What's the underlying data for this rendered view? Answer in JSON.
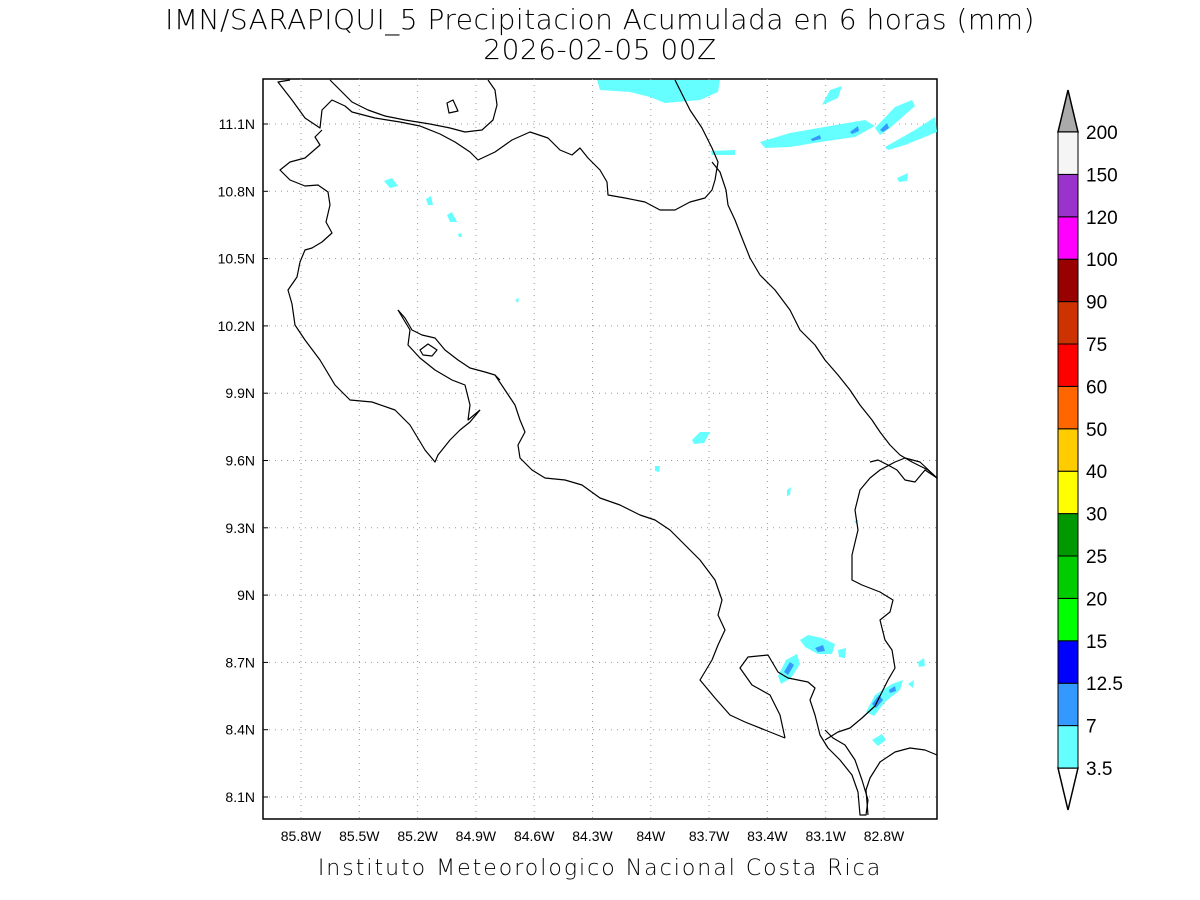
{
  "title": {
    "line1": "IMN/SARAPIQUI_5 Precipitacion Acumulada en 6 horas (mm)",
    "line2": "2026-02-05 00Z"
  },
  "footer": "Instituto Meteorologico Nacional Costa Rica",
  "map": {
    "lat_ticks": [
      "11.1N",
      "10.8N",
      "10.5N",
      "10.2N",
      "9.9N",
      "9.6N",
      "9.3N",
      "9N",
      "8.7N",
      "8.4N",
      "8.1N"
    ],
    "lon_ticks": [
      "85.8W",
      "85.5W",
      "85.2W",
      "84.9W",
      "84.6W",
      "84.3W",
      "84W",
      "83.7W",
      "83.4W",
      "83.1W",
      "82.8W"
    ],
    "grid": true,
    "grid_style": "dotted"
  },
  "colorbar": {
    "labels": [
      "3.5",
      "7",
      "12.5",
      "15",
      "20",
      "25",
      "30",
      "40",
      "50",
      "60",
      "75",
      "90",
      "100",
      "120",
      "150",
      "200"
    ],
    "colors": [
      "#66ffff",
      "#3399ff",
      "#0000ff",
      "#00ff00",
      "#00cc00",
      "#009900",
      "#ffff00",
      "#ffcc00",
      "#ff6600",
      "#ff0000",
      "#cc3300",
      "#990000",
      "#ff00ff",
      "#9933cc",
      "#f5f5f5"
    ],
    "top_arrow_color": "#aaaaaa",
    "bottom_arrow_color": "#ffffff"
  }
}
